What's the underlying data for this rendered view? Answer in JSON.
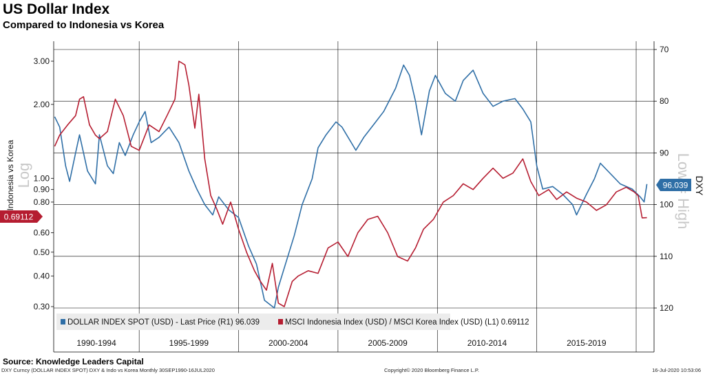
{
  "title": "US Dollar Index",
  "subtitle": "Compared to Indonesia vs Korea",
  "source": "Source: Knowledge Leaders Capital",
  "footer": {
    "left": "DXY Curncy (DOLLAR INDEX SPOT) DXY & Indo vs Korea  Monthly 30SEP1990-16JUL2020",
    "center": "Copyright© 2020 Bloomberg Finance L.P.",
    "right": "16-Jul-2020 10:53:06"
  },
  "colors": {
    "dxy": "#2e6ea6",
    "ratio": "#b51c30",
    "grid": "#000000"
  },
  "chart_data": {
    "type": "line",
    "left_axis": {
      "label": "Indonesia vs Korea",
      "scale": "log",
      "ticks": [
        "3.00",
        "2.00",
        "1.00",
        "0.90",
        "0.80",
        "0.60",
        "0.50",
        "0.40",
        "0.30"
      ],
      "tick_values": [
        3.0,
        2.0,
        1.0,
        0.9,
        0.8,
        0.6,
        0.5,
        0.4,
        0.3
      ],
      "range": [
        0.285,
        3.5
      ],
      "side_label": "Log",
      "last_value_tag": "0.69112"
    },
    "right_axis": {
      "label": "DXY",
      "inverted": true,
      "ticks": [
        "70",
        "80",
        "90",
        "100",
        "110",
        "120"
      ],
      "tick_values": [
        70,
        80,
        90,
        100,
        110,
        120
      ],
      "range": [
        70,
        120
      ],
      "side_label": "Low = High",
      "last_value_tag": "96.039"
    },
    "x_categories": [
      "1990-1994",
      "1995-1999",
      "2000-2004",
      "2005-2009",
      "2010-2014",
      "2015-2019"
    ],
    "series": [
      {
        "name": "DOLLAR INDEX SPOT (USD) - Last Price (R1) 96.039",
        "axis": "right",
        "x": [
          1990.75,
          1991.0,
          1991.3,
          1991.5,
          1991.8,
          1992.0,
          1992.4,
          1992.8,
          1993.0,
          1993.4,
          1993.7,
          1994.0,
          1994.3,
          1994.7,
          1995.0,
          1995.3,
          1995.6,
          1996.0,
          1996.5,
          1997.0,
          1997.5,
          1997.9,
          1998.3,
          1998.7,
          1999.0,
          1999.5,
          2000.0,
          2000.5,
          2000.9,
          2001.3,
          2001.8,
          2002.0,
          2002.4,
          2002.8,
          2003.2,
          2003.7,
          2004.0,
          2004.4,
          2004.9,
          2005.2,
          2005.9,
          2006.3,
          2006.9,
          2007.3,
          2007.9,
          2008.3,
          2008.6,
          2008.9,
          2009.2,
          2009.6,
          2009.9,
          2010.4,
          2010.9,
          2011.3,
          2011.8,
          2012.3,
          2012.8,
          2013.3,
          2013.9,
          2014.3,
          2014.7,
          2015.0,
          2015.3,
          2015.8,
          2016.3,
          2016.8,
          2017.0,
          2017.5,
          2017.9,
          2018.2,
          2018.7,
          2019.2,
          2019.8,
          2020.2,
          2020.4,
          2020.54
        ],
        "values": [
          83.0,
          85.0,
          92.5,
          95.5,
          90.0,
          86.5,
          93.5,
          96.0,
          86.5,
          92.5,
          94.0,
          88.0,
          90.5,
          86.5,
          84.0,
          82.0,
          88.0,
          87.0,
          85.0,
          88.0,
          93.5,
          97.0,
          100.0,
          102.0,
          98.5,
          101.0,
          102.5,
          108.0,
          111.5,
          118.5,
          120.0,
          116.0,
          111.0,
          106.0,
          100.0,
          95.0,
          89.0,
          86.5,
          84.0,
          85.0,
          89.5,
          87.0,
          84.0,
          82.0,
          77.5,
          73.0,
          75.0,
          80.0,
          86.5,
          78.0,
          75.0,
          78.5,
          80.0,
          76.0,
          74.0,
          78.5,
          81.0,
          80.0,
          79.5,
          81.5,
          84.0,
          92.5,
          97.0,
          96.5,
          98.0,
          100.0,
          102.0,
          98.0,
          95.0,
          92.0,
          94.0,
          96.0,
          97.0,
          98.5,
          99.5,
          96.039
        ]
      },
      {
        "name": "MSCI Indonesia Index (USD) / MSCI Korea Index (USD) (L1) 0.69112",
        "axis": "left",
        "x": [
          1990.75,
          1991.0,
          1991.4,
          1991.8,
          1992.0,
          1992.2,
          1992.5,
          1992.8,
          1993.0,
          1993.4,
          1993.8,
          1994.2,
          1994.6,
          1995.0,
          1995.5,
          1996.0,
          1996.4,
          1996.8,
          1997.0,
          1997.3,
          1997.5,
          1997.8,
          1998.0,
          1998.3,
          1998.6,
          1998.9,
          1999.2,
          1999.6,
          2000.0,
          2000.4,
          2000.8,
          2001.1,
          2001.4,
          2001.7,
          2002.0,
          2002.3,
          2002.7,
          2003.0,
          2003.5,
          2004.0,
          2004.5,
          2005.0,
          2005.5,
          2006.0,
          2006.5,
          2007.0,
          2007.5,
          2008.0,
          2008.5,
          2008.9,
          2009.3,
          2009.8,
          2010.3,
          2010.8,
          2011.3,
          2011.8,
          2012.3,
          2012.8,
          2013.3,
          2013.8,
          2014.3,
          2014.7,
          2015.1,
          2015.6,
          2016.0,
          2016.5,
          2017.0,
          2017.5,
          2018.0,
          2018.5,
          2019.0,
          2019.5,
          2019.9,
          2020.1,
          2020.3,
          2020.54
        ],
        "values": [
          1.35,
          1.5,
          1.65,
          1.8,
          2.1,
          2.15,
          1.65,
          1.5,
          1.45,
          1.55,
          2.1,
          1.8,
          1.35,
          1.3,
          1.65,
          1.55,
          1.8,
          2.1,
          3.0,
          2.9,
          2.4,
          1.6,
          2.2,
          1.2,
          0.85,
          0.75,
          0.65,
          0.8,
          0.62,
          0.5,
          0.42,
          0.38,
          0.35,
          0.45,
          0.31,
          0.3,
          0.38,
          0.4,
          0.42,
          0.41,
          0.52,
          0.55,
          0.48,
          0.6,
          0.68,
          0.7,
          0.6,
          0.48,
          0.46,
          0.52,
          0.62,
          0.68,
          0.8,
          0.85,
          0.95,
          0.9,
          1.0,
          1.1,
          1.0,
          1.05,
          1.2,
          0.97,
          0.85,
          0.9,
          0.82,
          0.88,
          0.83,
          0.8,
          0.74,
          0.78,
          0.88,
          0.92,
          0.88,
          0.85,
          0.69,
          0.69112
        ]
      }
    ]
  }
}
